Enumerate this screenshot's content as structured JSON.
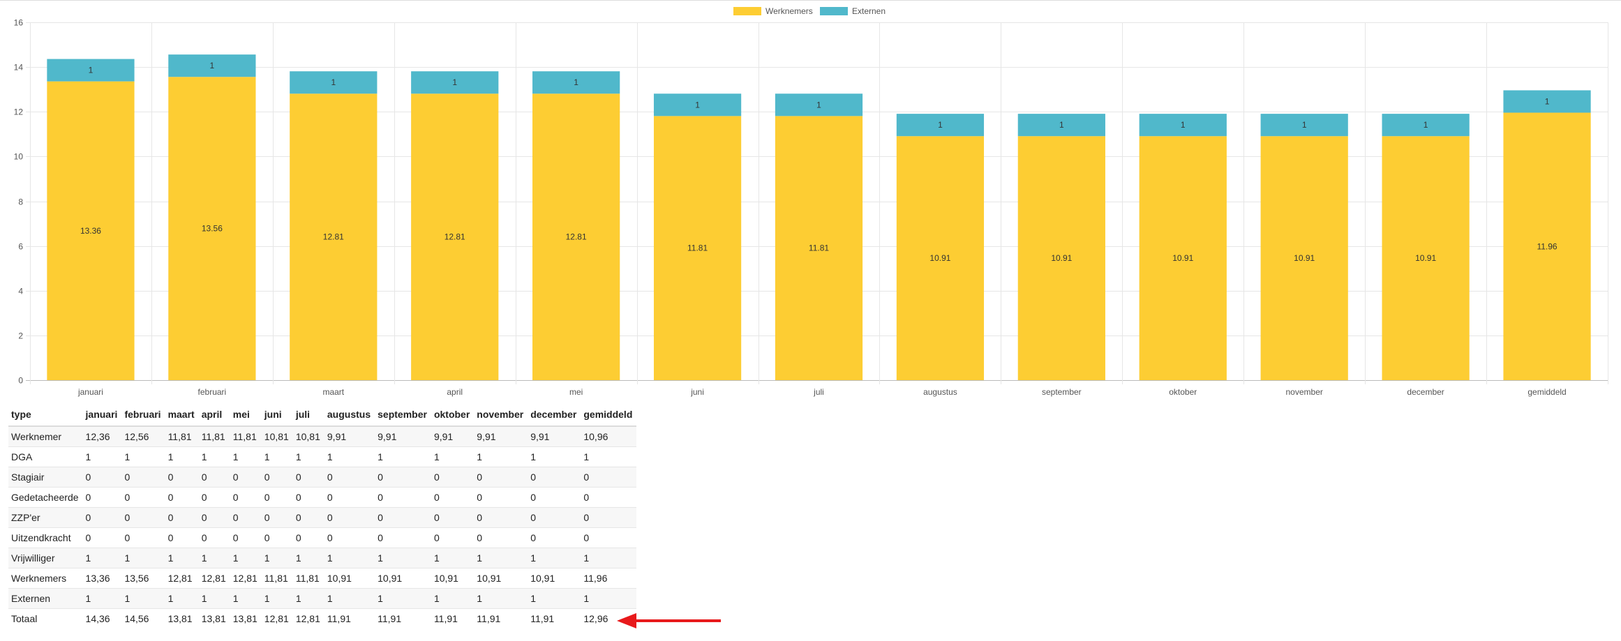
{
  "colors": {
    "werknemers": "#FDCD33",
    "externen": "#50B8CB",
    "arrow": "#E8191B",
    "grid": "#e6e6e6"
  },
  "chart_data": {
    "type": "bar",
    "stacked": true,
    "categories": [
      "januari",
      "februari",
      "maart",
      "april",
      "mei",
      "juni",
      "juli",
      "augustus",
      "september",
      "oktober",
      "november",
      "december",
      "gemiddeld"
    ],
    "series": [
      {
        "name": "Werknemers",
        "values": [
          13.36,
          13.56,
          12.81,
          12.81,
          12.81,
          11.81,
          11.81,
          10.91,
          10.91,
          10.91,
          10.91,
          10.91,
          11.96
        ],
        "labels": [
          "13.36",
          "13.56",
          "12.81",
          "12.81",
          "12.81",
          "11.81",
          "11.81",
          "10.91",
          "10.91",
          "10.91",
          "10.91",
          "10.91",
          "11.96"
        ]
      },
      {
        "name": "Externen",
        "values": [
          1,
          1,
          1,
          1,
          1,
          1,
          1,
          1,
          1,
          1,
          1,
          1,
          1
        ],
        "labels": [
          "1",
          "1",
          "1",
          "1",
          "1",
          "1",
          "1",
          "1",
          "1",
          "1",
          "1",
          "1",
          "1"
        ]
      }
    ],
    "ylim": [
      0,
      16
    ],
    "yticks": [
      "0",
      "2",
      "4",
      "6",
      "8",
      "10",
      "12",
      "14",
      "16"
    ],
    "legend_position": "top",
    "grid": true
  },
  "table": {
    "headers": [
      "type",
      "januari",
      "februari",
      "maart",
      "april",
      "mei",
      "juni",
      "juli",
      "augustus",
      "september",
      "oktober",
      "november",
      "december",
      "gemiddeld"
    ],
    "rows": [
      [
        "Werknemer",
        "12,36",
        "12,56",
        "11,81",
        "11,81",
        "11,81",
        "10,81",
        "10,81",
        "9,91",
        "9,91",
        "9,91",
        "9,91",
        "9,91",
        "10,96"
      ],
      [
        "DGA",
        "1",
        "1",
        "1",
        "1",
        "1",
        "1",
        "1",
        "1",
        "1",
        "1",
        "1",
        "1",
        "1"
      ],
      [
        "Stagiair",
        "0",
        "0",
        "0",
        "0",
        "0",
        "0",
        "0",
        "0",
        "0",
        "0",
        "0",
        "0",
        "0"
      ],
      [
        "Gedetacheerde",
        "0",
        "0",
        "0",
        "0",
        "0",
        "0",
        "0",
        "0",
        "0",
        "0",
        "0",
        "0",
        "0"
      ],
      [
        "ZZP'er",
        "0",
        "0",
        "0",
        "0",
        "0",
        "0",
        "0",
        "0",
        "0",
        "0",
        "0",
        "0",
        "0"
      ],
      [
        "Uitzendkracht",
        "0",
        "0",
        "0",
        "0",
        "0",
        "0",
        "0",
        "0",
        "0",
        "0",
        "0",
        "0",
        "0"
      ],
      [
        "Vrijwilliger",
        "1",
        "1",
        "1",
        "1",
        "1",
        "1",
        "1",
        "1",
        "1",
        "1",
        "1",
        "1",
        "1"
      ],
      [
        "Werknemers",
        "13,36",
        "13,56",
        "12,81",
        "12,81",
        "12,81",
        "11,81",
        "11,81",
        "10,91",
        "10,91",
        "10,91",
        "10,91",
        "10,91",
        "11,96"
      ],
      [
        "Externen",
        "1",
        "1",
        "1",
        "1",
        "1",
        "1",
        "1",
        "1",
        "1",
        "1",
        "1",
        "1",
        "1"
      ],
      [
        "Totaal",
        "14,36",
        "14,56",
        "13,81",
        "13,81",
        "13,81",
        "12,81",
        "12,81",
        "11,91",
        "11,91",
        "11,91",
        "11,91",
        "11,91",
        "12,96"
      ]
    ]
  },
  "annotation": {
    "icon": "red-arrow-icon",
    "points_to": "Totaal gemiddeld"
  }
}
